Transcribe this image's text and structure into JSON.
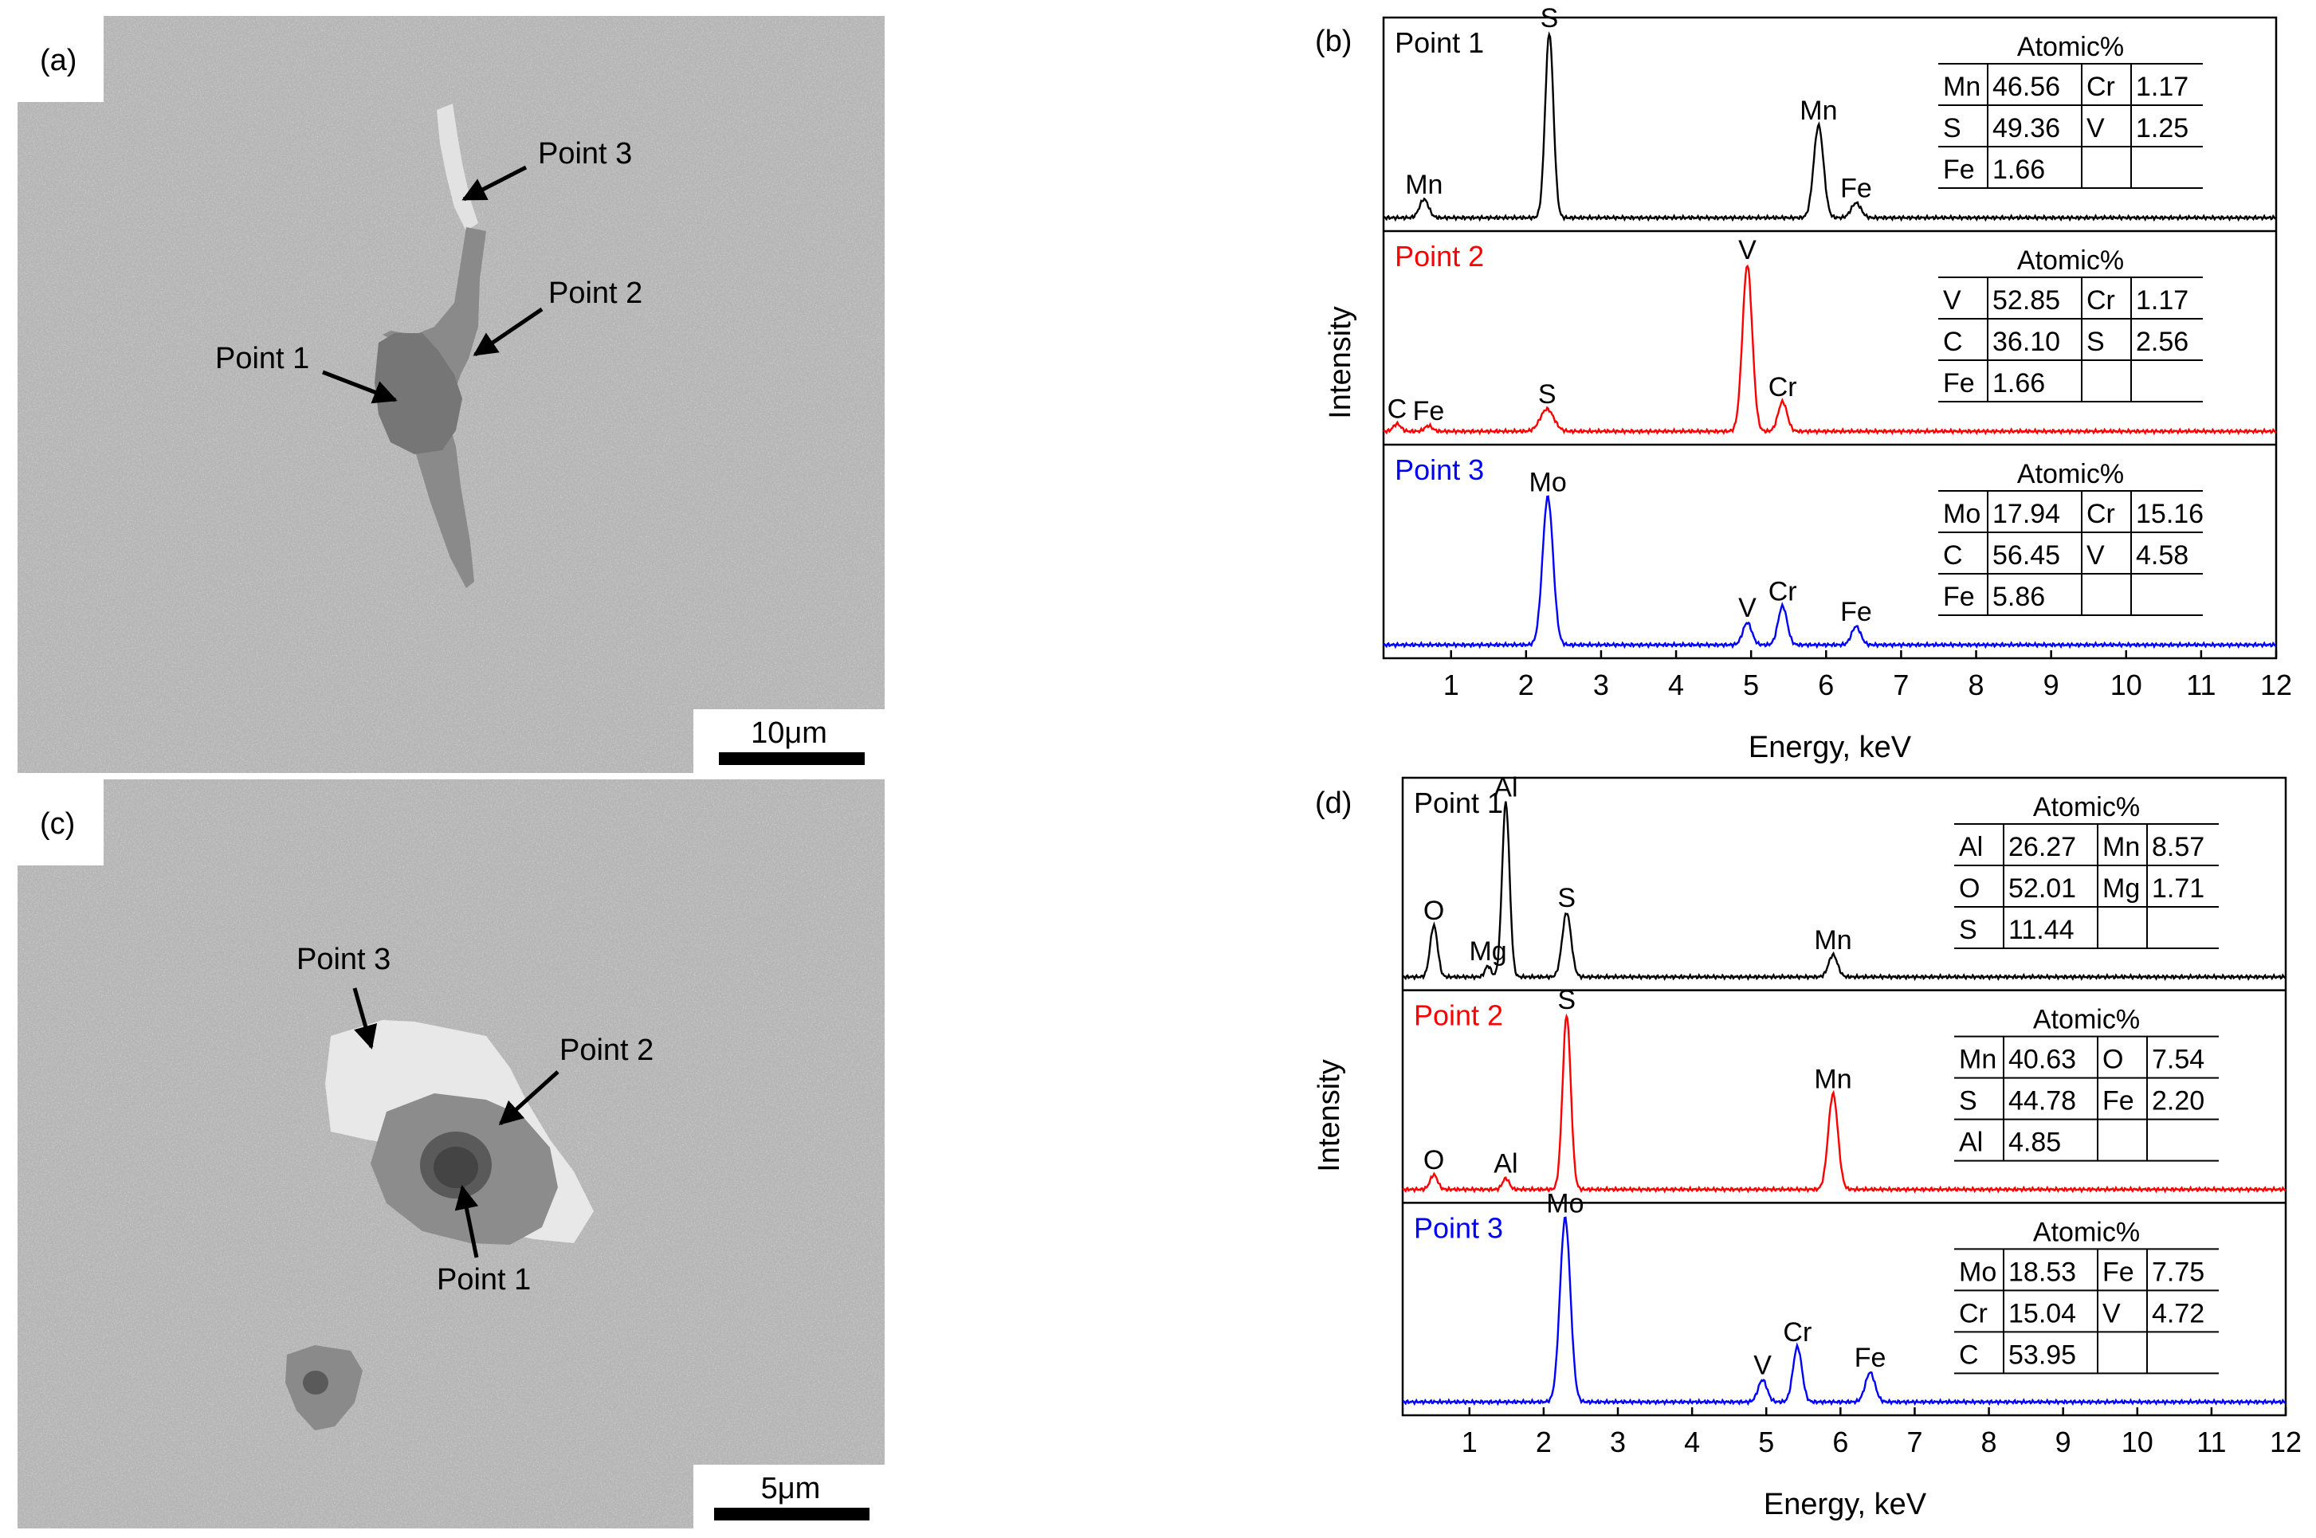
{
  "panels": {
    "a": {
      "label": "(a)",
      "scale_bar": "10μm",
      "points": [
        "Point 1",
        "Point 2",
        "Point 3"
      ]
    },
    "c": {
      "label": "(c)",
      "scale_bar": "5μm",
      "points": [
        "Point 1",
        "Point 2",
        "Point 3"
      ]
    },
    "b": {
      "label": "(b)",
      "ylabel": "Intensity",
      "xlabel": "Energy, keV",
      "xticks": [
        "1",
        "2",
        "3",
        "4",
        "5",
        "6",
        "7",
        "8",
        "9",
        "10",
        "11",
        "12"
      ]
    },
    "d": {
      "label": "(d)",
      "ylabel": "Intensity",
      "xlabel": "Energy, keV",
      "xticks": [
        "1",
        "2",
        "3",
        "4",
        "5",
        "6",
        "7",
        "8",
        "9",
        "10",
        "11",
        "12"
      ]
    }
  },
  "chart_data": [
    {
      "type": "line",
      "panel": "(b)",
      "xlabel": "Energy, keV",
      "ylabel": "Intensity",
      "xlim": [
        0.1,
        12
      ],
      "series": [
        {
          "name": "Point 1",
          "color": "#000000",
          "peaks": [
            {
              "x": 0.64,
              "h": 0.1,
              "w": 0.06,
              "label": "Mn"
            },
            {
              "x": 2.31,
              "h": 1.0,
              "w": 0.055,
              "label": "S"
            },
            {
              "x": 5.9,
              "h": 0.5,
              "w": 0.065,
              "label": "Mn"
            },
            {
              "x": 6.4,
              "h": 0.08,
              "w": 0.065,
              "label": "Fe"
            }
          ],
          "table": {
            "title": "Atomic%",
            "rows": [
              [
                "Mn",
                "46.56",
                "Cr",
                "1.17"
              ],
              [
                "S",
                "49.36",
                "V",
                "1.25"
              ],
              [
                "Fe",
                "1.66",
                "",
                ""
              ]
            ]
          }
        },
        {
          "name": "Point 2",
          "color": "#ff0000",
          "peaks": [
            {
              "x": 0.28,
              "h": 0.04,
              "w": 0.05,
              "label": "C"
            },
            {
              "x": 0.7,
              "h": 0.03,
              "w": 0.05,
              "label": "Fe"
            },
            {
              "x": 2.28,
              "h": 0.12,
              "w": 0.09,
              "label": "S"
            },
            {
              "x": 4.95,
              "h": 0.9,
              "w": 0.065,
              "label": "V"
            },
            {
              "x": 5.42,
              "h": 0.16,
              "w": 0.06,
              "label": "Cr"
            }
          ],
          "table": {
            "title": "Atomic%",
            "rows": [
              [
                "V",
                "52.85",
                "Cr",
                "1.17"
              ],
              [
                "C",
                "36.10",
                "S",
                "2.56"
              ],
              [
                "Fe",
                "1.66",
                "",
                ""
              ]
            ]
          }
        },
        {
          "name": "Point 3",
          "color": "#0000ff",
          "peaks": [
            {
              "x": 2.29,
              "h": 0.8,
              "w": 0.07,
              "label": "Mo"
            },
            {
              "x": 4.95,
              "h": 0.12,
              "w": 0.06,
              "label": "V"
            },
            {
              "x": 5.42,
              "h": 0.21,
              "w": 0.06,
              "label": "Cr"
            },
            {
              "x": 6.4,
              "h": 0.1,
              "w": 0.06,
              "label": "Fe"
            }
          ],
          "table": {
            "title": "Atomic%",
            "rows": [
              [
                "Mo",
                "17.94",
                "Cr",
                "15.16"
              ],
              [
                "C",
                "56.45",
                "V",
                "4.58"
              ],
              [
                "Fe",
                "5.86",
                "",
                ""
              ]
            ]
          }
        }
      ]
    },
    {
      "type": "line",
      "panel": "(d)",
      "xlabel": "Energy, keV",
      "ylabel": "Intensity",
      "xlim": [
        0.1,
        12
      ],
      "series": [
        {
          "name": "Point 1",
          "color": "#000000",
          "peaks": [
            {
              "x": 0.52,
              "h": 0.28,
              "w": 0.05,
              "label": "O"
            },
            {
              "x": 1.25,
              "h": 0.06,
              "w": 0.04,
              "label": "Mg"
            },
            {
              "x": 1.49,
              "h": 0.95,
              "w": 0.05,
              "label": "Al"
            },
            {
              "x": 2.31,
              "h": 0.35,
              "w": 0.06,
              "label": "S"
            },
            {
              "x": 5.9,
              "h": 0.12,
              "w": 0.06,
              "label": "Mn"
            }
          ],
          "table": {
            "title": "Atomic%",
            "rows": [
              [
                "Al",
                "26.27",
                "Mn",
                "8.57"
              ],
              [
                "O",
                "52.01",
                "Mg",
                "1.71"
              ],
              [
                "S",
                "11.44",
                "",
                ""
              ]
            ]
          }
        },
        {
          "name": "Point 2",
          "color": "#ff0000",
          "peaks": [
            {
              "x": 0.52,
              "h": 0.08,
              "w": 0.05,
              "label": "O"
            },
            {
              "x": 1.49,
              "h": 0.06,
              "w": 0.045,
              "label": "Al"
            },
            {
              "x": 2.31,
              "h": 0.95,
              "w": 0.055,
              "label": "S"
            },
            {
              "x": 5.9,
              "h": 0.52,
              "w": 0.065,
              "label": "Mn"
            }
          ],
          "table": {
            "title": "Atomic%",
            "rows": [
              [
                "Mn",
                "40.63",
                "O",
                "7.54"
              ],
              [
                "S",
                "44.78",
                "Fe",
                "2.20"
              ],
              [
                "Al",
                "4.85",
                "",
                ""
              ]
            ]
          }
        },
        {
          "name": "Point 3",
          "color": "#0000ff",
          "peaks": [
            {
              "x": 2.29,
              "h": 1.0,
              "w": 0.07,
              "label": "Mo"
            },
            {
              "x": 4.95,
              "h": 0.12,
              "w": 0.06,
              "label": "V"
            },
            {
              "x": 5.42,
              "h": 0.3,
              "w": 0.06,
              "label": "Cr"
            },
            {
              "x": 6.4,
              "h": 0.16,
              "w": 0.065,
              "label": "Fe"
            }
          ],
          "table": {
            "title": "Atomic%",
            "rows": [
              [
                "Mo",
                "18.53",
                "Fe",
                "7.75"
              ],
              [
                "Cr",
                "15.04",
                "V",
                "4.72"
              ],
              [
                "C",
                "53.95",
                "",
                ""
              ]
            ]
          }
        }
      ]
    }
  ]
}
